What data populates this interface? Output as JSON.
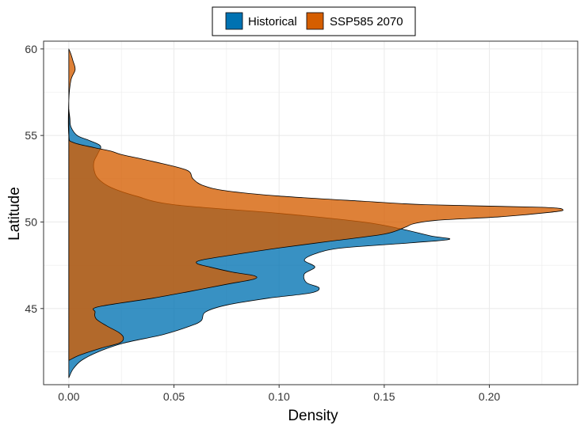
{
  "chart_data": {
    "type": "area",
    "orientation": "horizontal-density",
    "xlabel": "Density",
    "ylabel": "Latitude",
    "xlim": [
      -0.012,
      0.242
    ],
    "ylim": [
      40.6,
      60.45
    ],
    "x_ticks": [
      0.0,
      0.05,
      0.1,
      0.15,
      0.2
    ],
    "x_tick_labels": [
      "0.00",
      "0.05",
      "0.10",
      "0.15",
      "0.20"
    ],
    "y_ticks": [
      45,
      50,
      55,
      60
    ],
    "y_tick_labels": [
      "45",
      "50",
      "55",
      "60"
    ],
    "grid": true,
    "legend_position": "top",
    "series": [
      {
        "name": "Historical",
        "color": "#0072B2",
        "points": [
          [
            41.0,
            0.0
          ],
          [
            41.5,
            0.002
          ],
          [
            42.0,
            0.006
          ],
          [
            42.5,
            0.014
          ],
          [
            43.0,
            0.026
          ],
          [
            43.5,
            0.045
          ],
          [
            44.0,
            0.058
          ],
          [
            44.3,
            0.063
          ],
          [
            44.8,
            0.065
          ],
          [
            45.2,
            0.075
          ],
          [
            45.6,
            0.095
          ],
          [
            45.9,
            0.115
          ],
          [
            46.2,
            0.119
          ],
          [
            46.5,
            0.113
          ],
          [
            47.0,
            0.112
          ],
          [
            47.4,
            0.117
          ],
          [
            47.8,
            0.112
          ],
          [
            48.2,
            0.118
          ],
          [
            48.5,
            0.13
          ],
          [
            48.8,
            0.163
          ],
          [
            49.0,
            0.181
          ],
          [
            49.2,
            0.172
          ],
          [
            49.6,
            0.158
          ],
          [
            50.0,
            0.14
          ],
          [
            50.5,
            0.1
          ],
          [
            51.0,
            0.05
          ],
          [
            51.5,
            0.032
          ],
          [
            52.0,
            0.02
          ],
          [
            52.5,
            0.014
          ],
          [
            53.0,
            0.012
          ],
          [
            53.5,
            0.012
          ],
          [
            54.0,
            0.014
          ],
          [
            54.4,
            0.015
          ],
          [
            54.7,
            0.01
          ],
          [
            55.0,
            0.004
          ],
          [
            55.5,
            0.001
          ],
          [
            56.0,
            0.0005
          ],
          [
            56.5,
            0.0
          ]
        ]
      },
      {
        "name": "SSP585 2070",
        "color": "#D55E00",
        "points": [
          [
            42.0,
            0.0
          ],
          [
            42.3,
            0.005
          ],
          [
            42.7,
            0.015
          ],
          [
            43.0,
            0.024
          ],
          [
            43.3,
            0.026
          ],
          [
            43.6,
            0.024
          ],
          [
            44.0,
            0.018
          ],
          [
            44.4,
            0.013
          ],
          [
            44.8,
            0.0125
          ],
          [
            45.1,
            0.014
          ],
          [
            45.6,
            0.04
          ],
          [
            46.0,
            0.058
          ],
          [
            46.4,
            0.075
          ],
          [
            46.7,
            0.088
          ],
          [
            46.9,
            0.088
          ],
          [
            47.1,
            0.078
          ],
          [
            47.4,
            0.067
          ],
          [
            47.6,
            0.061
          ],
          [
            47.8,
            0.063
          ],
          [
            48.1,
            0.078
          ],
          [
            48.5,
            0.1
          ],
          [
            48.9,
            0.125
          ],
          [
            49.3,
            0.15
          ],
          [
            49.7,
            0.16
          ],
          [
            49.9,
            0.164
          ],
          [
            50.1,
            0.175
          ],
          [
            50.3,
            0.205
          ],
          [
            50.55,
            0.228
          ],
          [
            50.7,
            0.235
          ],
          [
            50.85,
            0.225
          ],
          [
            51.0,
            0.17
          ],
          [
            51.2,
            0.14
          ],
          [
            51.5,
            0.1
          ],
          [
            51.8,
            0.075
          ],
          [
            52.1,
            0.064
          ],
          [
            52.5,
            0.059
          ],
          [
            53.0,
            0.056
          ],
          [
            53.5,
            0.04
          ],
          [
            53.9,
            0.025
          ],
          [
            54.1,
            0.02
          ],
          [
            54.3,
            0.012
          ],
          [
            54.6,
            0.002
          ],
          [
            55.0,
            0.0
          ],
          [
            57.0,
            0.0
          ],
          [
            58.2,
            0.001
          ],
          [
            58.8,
            0.003
          ],
          [
            59.3,
            0.002
          ],
          [
            59.7,
            0.001
          ],
          [
            60.0,
            0.0
          ]
        ]
      }
    ]
  }
}
